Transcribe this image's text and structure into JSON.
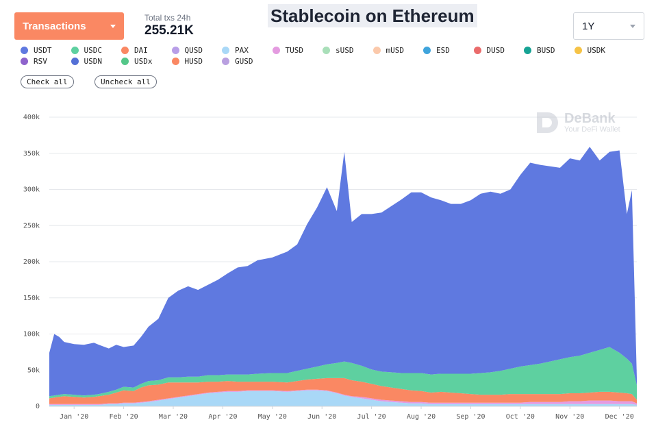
{
  "header": {
    "metric_label": "Transactions",
    "stat_label": "Total txs 24h",
    "stat_value": "255.21K",
    "title": "Stablecoin on Ethereum",
    "range_label": "1Y"
  },
  "legend": {
    "items": [
      {
        "label": "USDT",
        "color": "#5f79e0"
      },
      {
        "label": "USDC",
        "color": "#5ed0a0"
      },
      {
        "label": "DAI",
        "color": "#fa8863"
      },
      {
        "label": "QUSD",
        "color": "#b89ee8"
      },
      {
        "label": "PAX",
        "color": "#a9d8f7"
      },
      {
        "label": "TUSD",
        "color": "#e49be0"
      },
      {
        "label": "sUSD",
        "color": "#a9dfb9"
      },
      {
        "label": "mUSD",
        "color": "#fbc9ab"
      },
      {
        "label": "ESD",
        "color": "#3fa4dc"
      },
      {
        "label": "DUSD",
        "color": "#ea6b6b"
      },
      {
        "label": "BUSD",
        "color": "#16a394"
      },
      {
        "label": "USDK",
        "color": "#f6c346"
      },
      {
        "label": "RSV",
        "color": "#8e63cc"
      },
      {
        "label": "USDN",
        "color": "#5470d6"
      },
      {
        "label": "USDx",
        "color": "#54c789"
      },
      {
        "label": "HUSD",
        "color": "#fa8863"
      },
      {
        "label": "GUSD",
        "color": "#b9a0e0"
      }
    ],
    "check_all": "Check all",
    "uncheck_all": "Uncheck all"
  },
  "watermark": {
    "brand": "DeBank",
    "tagline": "Your DeFi Wallet"
  },
  "chart_data": {
    "type": "area",
    "stacked": true,
    "y_ticks": [
      "0",
      "50k",
      "100k",
      "150k",
      "200k",
      "250k",
      "300k",
      "350k",
      "400k"
    ],
    "ylim": [
      0,
      400000
    ],
    "x_ticks": [
      "Jan '20",
      "Feb '20",
      "Mar '20",
      "Apr '20",
      "May '20",
      "Jun '20",
      "Jul '20",
      "Aug '20",
      "Sep '20",
      "Oct '20",
      "Nov '20",
      "Dec '20"
    ],
    "x_tick_positions": [
      0.5,
      1.5,
      2.5,
      3.5,
      4.5,
      5.5,
      6.5,
      7.5,
      8.5,
      9.5,
      10.5,
      11.5
    ],
    "xlim": [
      0,
      11.85
    ],
    "grid": true,
    "x": [
      0,
      0.1,
      0.2,
      0.3,
      0.5,
      0.7,
      0.9,
      1.0,
      1.2,
      1.35,
      1.5,
      1.7,
      1.85,
      2.0,
      2.2,
      2.4,
      2.6,
      2.8,
      3.0,
      3.2,
      3.4,
      3.6,
      3.8,
      4.0,
      4.2,
      4.5,
      4.8,
      5.0,
      5.2,
      5.4,
      5.6,
      5.8,
      5.95,
      6.1,
      6.3,
      6.5,
      6.7,
      6.9,
      7.1,
      7.3,
      7.5,
      7.7,
      7.9,
      8.1,
      8.3,
      8.5,
      8.7,
      8.9,
      9.1,
      9.3,
      9.5,
      9.7,
      9.9,
      10.1,
      10.3,
      10.5,
      10.7,
      10.9,
      11.1,
      11.3,
      11.5,
      11.65,
      11.75,
      11.85
    ],
    "series": [
      {
        "name": "PAX",
        "color": "#a9d8f7",
        "values": [
          2000,
          2000,
          2000,
          2000,
          2000,
          2000,
          2000,
          2000,
          3000,
          3000,
          4000,
          4000,
          5000,
          6000,
          8000,
          10000,
          12000,
          14000,
          16000,
          18000,
          19000,
          20000,
          20000,
          21000,
          21000,
          21000,
          20000,
          21000,
          22000,
          22000,
          21000,
          18000,
          15000,
          13000,
          11000,
          9000,
          7000,
          6000,
          5000,
          4000,
          4000,
          3000,
          3000,
          3000,
          3000,
          3000,
          3000,
          3000,
          3000,
          3000,
          3000,
          3000,
          3000,
          3000,
          3000,
          3000,
          3000,
          3000,
          3000,
          3000,
          3000,
          3000,
          3000,
          2000
        ]
      },
      {
        "name": "TUSD",
        "color": "#e49be0",
        "values": [
          1000,
          1000,
          1000,
          1000,
          1000,
          1000,
          1000,
          1000,
          1000,
          1000,
          1000,
          1000,
          1000,
          1000,
          1000,
          1000,
          1000,
          1000,
          1000,
          1000,
          1000,
          1000,
          1000,
          1000,
          1000,
          1000,
          1000,
          1000,
          1000,
          1000,
          1000,
          1000,
          1000,
          1000,
          2000,
          2000,
          2000,
          2000,
          2000,
          2000,
          2000,
          2000,
          2000,
          2000,
          2000,
          2000,
          2000,
          2000,
          2000,
          2000,
          2000,
          3000,
          3000,
          3000,
          3000,
          4000,
          4000,
          5000,
          5000,
          5000,
          4000,
          4000,
          4000,
          2000
        ]
      },
      {
        "name": "DAI",
        "color": "#fa8863",
        "values": [
          8000,
          9000,
          10000,
          11000,
          10000,
          9000,
          10000,
          11000,
          12000,
          15000,
          17000,
          16000,
          20000,
          22000,
          21000,
          22000,
          20000,
          18000,
          16000,
          15000,
          14000,
          14000,
          13000,
          12000,
          12000,
          12000,
          12000,
          13000,
          14000,
          15000,
          17000,
          20000,
          23000,
          22000,
          21000,
          20000,
          19000,
          18000,
          17000,
          16000,
          15000,
          14000,
          15000,
          14000,
          13000,
          12000,
          11000,
          11000,
          11000,
          12000,
          12000,
          11000,
          11000,
          11000,
          11000,
          11000,
          11000,
          11000,
          12000,
          12000,
          12000,
          11000,
          10000,
          5000
        ]
      },
      {
        "name": "USDC",
        "color": "#5ed0a0",
        "values": [
          3000,
          3000,
          3000,
          3000,
          3000,
          3000,
          3000,
          3000,
          4000,
          4000,
          5000,
          5000,
          5000,
          6000,
          6000,
          7000,
          7000,
          8000,
          8000,
          9000,
          9000,
          9000,
          10000,
          10000,
          11000,
          12000,
          13000,
          14000,
          15000,
          17000,
          19000,
          21000,
          23000,
          24000,
          22000,
          20000,
          20000,
          21000,
          22000,
          24000,
          25000,
          25000,
          25000,
          26000,
          27000,
          28000,
          30000,
          31000,
          33000,
          35000,
          38000,
          40000,
          42000,
          45000,
          48000,
          50000,
          52000,
          55000,
          58000,
          62000,
          55000,
          48000,
          42000,
          20000
        ]
      },
      {
        "name": "USDT",
        "color": "#5f79e0",
        "values": [
          60000,
          85000,
          80000,
          72000,
          70000,
          70000,
          72000,
          68000,
          60000,
          62000,
          55000,
          58000,
          65000,
          75000,
          85000,
          110000,
          120000,
          125000,
          120000,
          125000,
          132000,
          140000,
          148000,
          150000,
          157000,
          160000,
          168000,
          175000,
          200000,
          220000,
          245000,
          210000,
          290000,
          195000,
          210000,
          215000,
          220000,
          230000,
          240000,
          250000,
          250000,
          245000,
          240000,
          235000,
          235000,
          240000,
          248000,
          250000,
          245000,
          248000,
          265000,
          280000,
          275000,
          270000,
          265000,
          275000,
          270000,
          285000,
          262000,
          270000,
          280000,
          200000,
          240000,
          10000
        ]
      }
    ]
  }
}
